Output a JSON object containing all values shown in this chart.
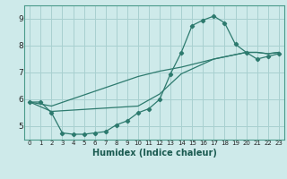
{
  "xlabel": "Humidex (Indice chaleur)",
  "bg_color": "#ceeaea",
  "grid_color": "#a8d0d0",
  "line_color": "#2d7a6e",
  "spine_color": "#4a9a8a",
  "xlim": [
    -0.5,
    23.5
  ],
  "ylim": [
    4.5,
    9.5
  ],
  "yticks": [
    5,
    6,
    7,
    8,
    9
  ],
  "xticks": [
    0,
    1,
    2,
    3,
    4,
    5,
    6,
    7,
    8,
    9,
    10,
    11,
    12,
    13,
    14,
    15,
    16,
    17,
    18,
    19,
    20,
    21,
    22,
    23
  ],
  "series1_x": [
    0,
    1,
    2,
    3,
    4,
    5,
    6,
    7,
    8,
    9,
    10,
    11,
    12,
    13,
    14,
    15,
    16,
    17,
    18,
    19,
    20,
    21,
    22,
    23
  ],
  "series1_y": [
    5.9,
    5.9,
    5.5,
    4.75,
    4.7,
    4.7,
    4.75,
    4.8,
    5.05,
    5.2,
    5.5,
    5.65,
    6.0,
    6.95,
    7.75,
    8.75,
    8.95,
    9.1,
    8.85,
    8.05,
    7.75,
    7.5,
    7.6,
    7.7
  ],
  "series2_x": [
    0,
    2,
    10,
    12,
    14,
    17,
    20,
    21,
    22,
    23
  ],
  "series2_y": [
    5.9,
    5.75,
    6.85,
    7.05,
    7.2,
    7.5,
    7.75,
    7.75,
    7.7,
    7.75
  ],
  "series3_x": [
    0,
    2,
    10,
    12,
    14,
    17,
    20,
    21,
    22,
    23
  ],
  "series3_y": [
    5.9,
    5.55,
    5.75,
    6.2,
    6.95,
    7.5,
    7.75,
    7.75,
    7.7,
    7.75
  ]
}
